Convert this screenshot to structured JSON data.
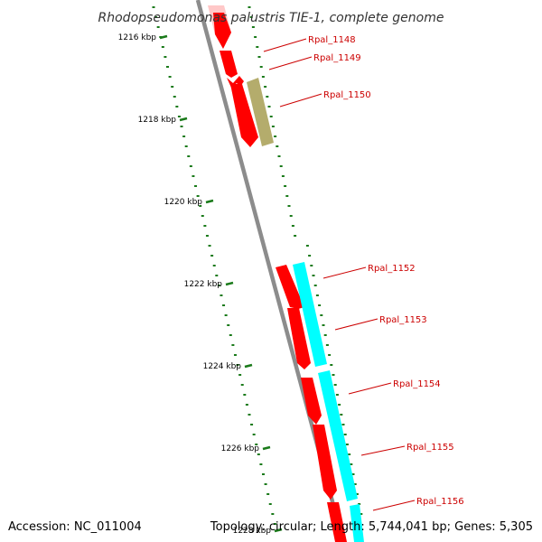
{
  "title": "Rhodopseudomonas palustris TIE-1, complete genome",
  "accession_text": "Accession: NC_011004",
  "summary_text": "Topology: circular; Length: 5,744,041 bp; Genes: 5,305",
  "colors": {
    "backbone": "#8c8c8c",
    "gene_forward": "#ff0000",
    "gene_faded": "#ffc8c8",
    "gene_olive": "#b4ac6c",
    "gene_cyan": "#00ffff",
    "tick": "#1a7a1a",
    "label": "#cc0000"
  },
  "scale_labels": [
    "1216 kbp",
    "1218 kbp",
    "1220 kbp",
    "1222 kbp",
    "1224 kbp",
    "1226 kbp",
    "1228 kbp"
  ],
  "genes": [
    {
      "label": "Rpal_1148"
    },
    {
      "label": "Rpal_1149"
    },
    {
      "label": "Rpal_1150"
    },
    {
      "label": "Rpal_1152"
    },
    {
      "label": "Rpal_1153"
    },
    {
      "label": "Rpal_1154"
    },
    {
      "label": "Rpal_1155"
    },
    {
      "label": "Rpal_1156"
    }
  ]
}
